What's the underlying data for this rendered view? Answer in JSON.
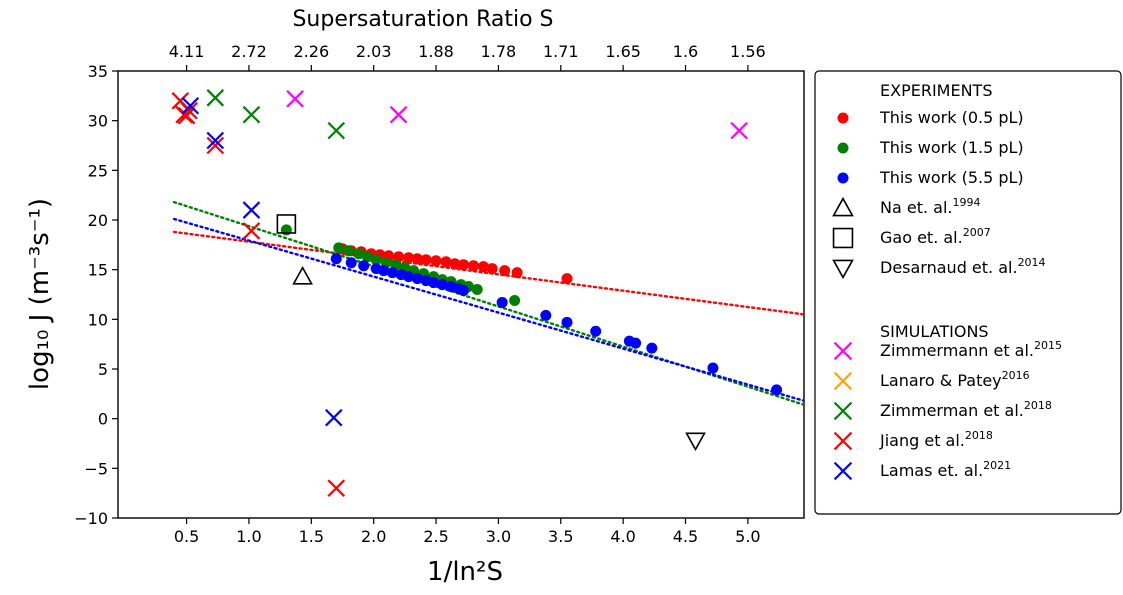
{
  "chart_data": {
    "type": "scatter",
    "xlabel": "1/ln²S",
    "ylabel": "log₁₀ J (m⁻³s⁻¹)",
    "top_axis_title": "Supersaturation Ratio S",
    "xlim": [
      -0.05,
      5.45
    ],
    "ylim": [
      -10,
      35
    ],
    "grid": false,
    "legend_placement": "outside-right",
    "x_ticks": [
      0.5,
      1.0,
      1.5,
      2.0,
      2.5,
      3.0,
      3.5,
      4.0,
      4.5,
      5.0
    ],
    "x_tick_labels": [
      "0.5",
      "1.0",
      "1.5",
      "2.0",
      "2.5",
      "3.0",
      "3.5",
      "4.0",
      "4.5",
      "5.0"
    ],
    "y_ticks": [
      -10,
      -5,
      0,
      5,
      10,
      15,
      20,
      25,
      30,
      35
    ],
    "y_tick_labels": [
      "−10",
      "−5",
      "0",
      "5",
      "10",
      "15",
      "20",
      "25",
      "30",
      "35"
    ],
    "top_ticks": [
      {
        "x": 0.5,
        "label": "4.11"
      },
      {
        "x": 1.0,
        "label": "2.72"
      },
      {
        "x": 1.5,
        "label": "2.26"
      },
      {
        "x": 2.0,
        "label": "2.03"
      },
      {
        "x": 2.5,
        "label": "1.88"
      },
      {
        "x": 3.0,
        "label": "1.78"
      },
      {
        "x": 3.5,
        "label": "1.71"
      },
      {
        "x": 4.0,
        "label": "1.65"
      },
      {
        "x": 4.5,
        "label": "1.6"
      },
      {
        "x": 5.0,
        "label": "1.56"
      }
    ],
    "legend": {
      "experiments_header": "EXPERIMENTS",
      "simulations_header": "SIMULATIONS"
    },
    "series": [
      {
        "name": "This work (0.5 pL)",
        "color": "#ff0000",
        "marker": "circle",
        "group": "EXPERIMENTS",
        "points": [
          [
            1.75,
            17.1
          ],
          [
            1.82,
            16.9
          ],
          [
            1.9,
            16.8
          ],
          [
            1.98,
            16.6
          ],
          [
            2.05,
            16.5
          ],
          [
            2.12,
            16.4
          ],
          [
            2.2,
            16.3
          ],
          [
            2.28,
            16.2
          ],
          [
            2.35,
            16.1
          ],
          [
            2.42,
            16.0
          ],
          [
            2.5,
            15.9
          ],
          [
            2.58,
            15.8
          ],
          [
            2.65,
            15.6
          ],
          [
            2.72,
            15.5
          ],
          [
            2.8,
            15.4
          ],
          [
            2.88,
            15.3
          ],
          [
            2.95,
            15.1
          ],
          [
            3.05,
            14.9
          ],
          [
            3.15,
            14.7
          ],
          [
            3.55,
            14.1
          ]
        ]
      },
      {
        "name": "This work (1.5 pL)",
        "color": "#008000",
        "marker": "circle",
        "group": "EXPERIMENTS",
        "points": [
          [
            1.3,
            19.0
          ],
          [
            1.72,
            17.2
          ],
          [
            1.8,
            16.9
          ],
          [
            1.88,
            16.6
          ],
          [
            1.95,
            16.3
          ],
          [
            2.02,
            16.0
          ],
          [
            2.1,
            15.7
          ],
          [
            2.18,
            15.5
          ],
          [
            2.25,
            15.2
          ],
          [
            2.32,
            14.9
          ],
          [
            2.4,
            14.6
          ],
          [
            2.48,
            14.3
          ],
          [
            2.55,
            14.0
          ],
          [
            2.62,
            13.8
          ],
          [
            2.7,
            13.5
          ],
          [
            2.76,
            13.3
          ],
          [
            2.83,
            13.0
          ],
          [
            3.13,
            11.9
          ]
        ]
      },
      {
        "name": "This work (5.5 pL)",
        "color": "#0000ff",
        "marker": "circle",
        "group": "EXPERIMENTS",
        "points": [
          [
            1.7,
            16.1
          ],
          [
            1.82,
            15.7
          ],
          [
            1.92,
            15.4
          ],
          [
            2.02,
            15.1
          ],
          [
            2.08,
            14.9
          ],
          [
            2.15,
            14.7
          ],
          [
            2.22,
            14.5
          ],
          [
            2.28,
            14.3
          ],
          [
            2.35,
            14.1
          ],
          [
            2.42,
            13.9
          ],
          [
            2.48,
            13.7
          ],
          [
            2.55,
            13.5
          ],
          [
            2.62,
            13.3
          ],
          [
            2.68,
            13.1
          ],
          [
            2.72,
            12.9
          ],
          [
            3.03,
            11.7
          ],
          [
            3.38,
            10.4
          ],
          [
            3.55,
            9.7
          ],
          [
            3.78,
            8.8
          ],
          [
            4.05,
            7.8
          ],
          [
            4.1,
            7.6
          ],
          [
            4.23,
            7.1
          ],
          [
            4.72,
            5.1
          ],
          [
            5.23,
            2.9
          ]
        ]
      },
      {
        "name": "Na et. al.",
        "superscript": "1994",
        "color": "#000000",
        "marker": "triangle-up",
        "group": "EXPERIMENTS",
        "points": [
          [
            1.43,
            14.3
          ]
        ]
      },
      {
        "name": "Gao et. al.",
        "superscript": "2007",
        "color": "#000000",
        "marker": "square",
        "group": "EXPERIMENTS",
        "points": [
          [
            1.3,
            19.6
          ]
        ]
      },
      {
        "name": "Desarnaud et. al.",
        "superscript": "2014",
        "color": "#000000",
        "marker": "triangle-down",
        "group": "EXPERIMENTS",
        "points": [
          [
            4.58,
            -2.2
          ]
        ]
      },
      {
        "name": "Zimmermann et al.",
        "superscript": "2015",
        "color": "#ff00ff",
        "marker": "x",
        "group": "SIMULATIONS",
        "points": [
          [
            1.37,
            32.2
          ],
          [
            2.2,
            30.6
          ],
          [
            4.93,
            29.0
          ]
        ]
      },
      {
        "name": "Lanaro & Patey",
        "superscript": "2016",
        "color": "#ffa500",
        "marker": "x",
        "group": "SIMULATIONS",
        "points": []
      },
      {
        "name": "Zimmerman et al.",
        "superscript": "2018",
        "color": "#008000",
        "marker": "x",
        "group": "SIMULATIONS",
        "points": [
          [
            0.73,
            32.3
          ],
          [
            1.02,
            30.6
          ],
          [
            1.7,
            29.0
          ]
        ]
      },
      {
        "name": "Jiang et al.",
        "superscript": "2018",
        "color": "#ff0000",
        "marker": "x",
        "group": "SIMULATIONS",
        "points": [
          [
            0.45,
            32.0
          ],
          [
            0.48,
            30.6
          ],
          [
            0.52,
            31.0
          ],
          [
            0.5,
            30.5
          ],
          [
            0.73,
            27.5
          ],
          [
            1.02,
            18.9
          ],
          [
            1.7,
            -7.0
          ]
        ]
      },
      {
        "name": "Lamas et. al.",
        "superscript": "2021",
        "color": "#0000ff",
        "marker": "x",
        "group": "SIMULATIONS",
        "points": [
          [
            0.53,
            31.5
          ],
          [
            0.73,
            28.0
          ],
          [
            1.02,
            21.0
          ],
          [
            1.68,
            0.1
          ]
        ]
      }
    ],
    "fit_lines": [
      {
        "color": "#ff0000",
        "style": "dotted",
        "x": [
          0.4,
          5.45
        ],
        "y": [
          18.8,
          10.5
        ]
      },
      {
        "color": "#008000",
        "style": "dotted",
        "x": [
          0.4,
          5.45
        ],
        "y": [
          21.8,
          1.4
        ]
      },
      {
        "color": "#0000ff",
        "style": "dotted",
        "x": [
          0.4,
          5.45
        ],
        "y": [
          20.1,
          1.8
        ]
      }
    ]
  }
}
